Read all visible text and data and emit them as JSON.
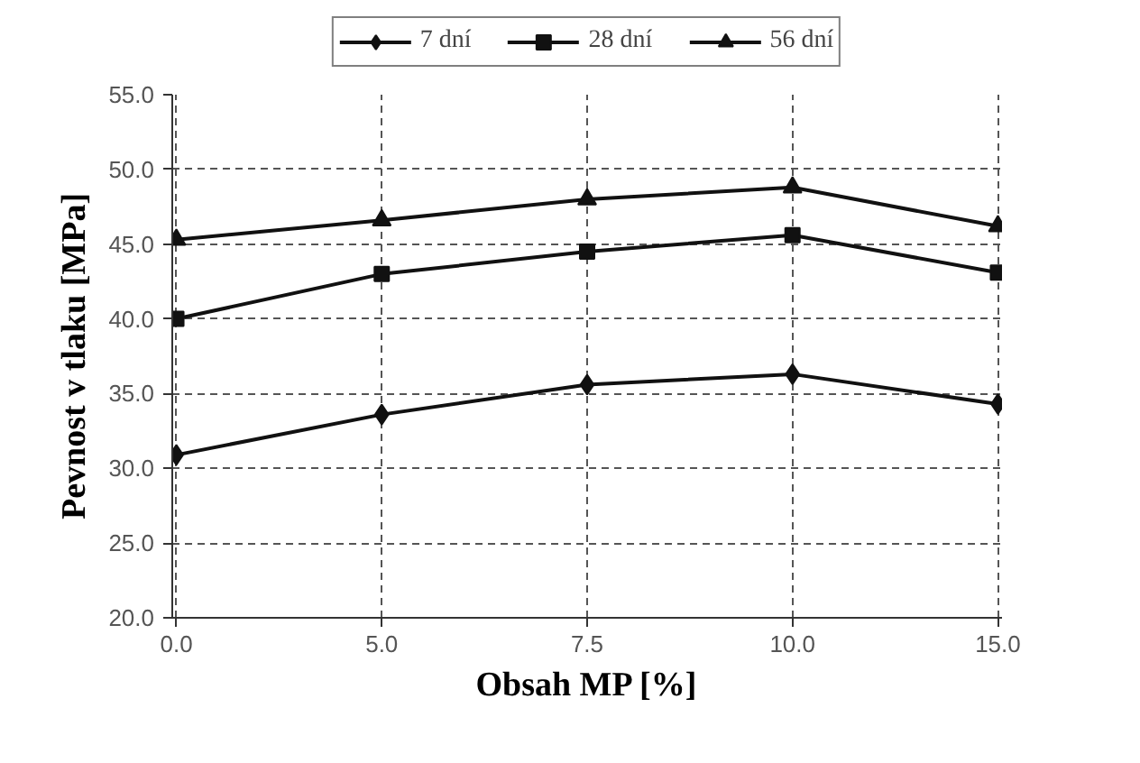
{
  "chart_data": {
    "type": "line",
    "xlabel": "Obsah MP [%]",
    "ylabel": "Pevnost v tlaku [MPa]",
    "categories": [
      "0.0",
      "5.0",
      "7.5",
      "10.0",
      "15.0"
    ],
    "series": [
      {
        "name": "7 dní",
        "color": "#111111",
        "marker": "diamond",
        "values": [
          30.9,
          33.6,
          35.6,
          36.3,
          34.3
        ]
      },
      {
        "name": "28 dní",
        "color": "#111111",
        "marker": "square",
        "values": [
          40.0,
          43.0,
          44.5,
          45.6,
          43.1
        ]
      },
      {
        "name": "56 dní",
        "color": "#111111",
        "marker": "triangle",
        "values": [
          45.3,
          46.6,
          48.0,
          48.8,
          46.2
        ]
      }
    ],
    "ylim": [
      20,
      55
    ],
    "yticks": [
      {
        "value": 20,
        "label": "20.0"
      },
      {
        "value": 25,
        "label": "25.0"
      },
      {
        "value": 30,
        "label": "30.0"
      },
      {
        "value": 35,
        "label": "35.0"
      },
      {
        "value": 40,
        "label": "40.0"
      },
      {
        "value": 45,
        "label": "45.0"
      },
      {
        "value": 50,
        "label": "50.0"
      },
      {
        "value": 55,
        "label": "55.0"
      }
    ],
    "grid": true,
    "legend": "top",
    "line_style": "solid"
  }
}
